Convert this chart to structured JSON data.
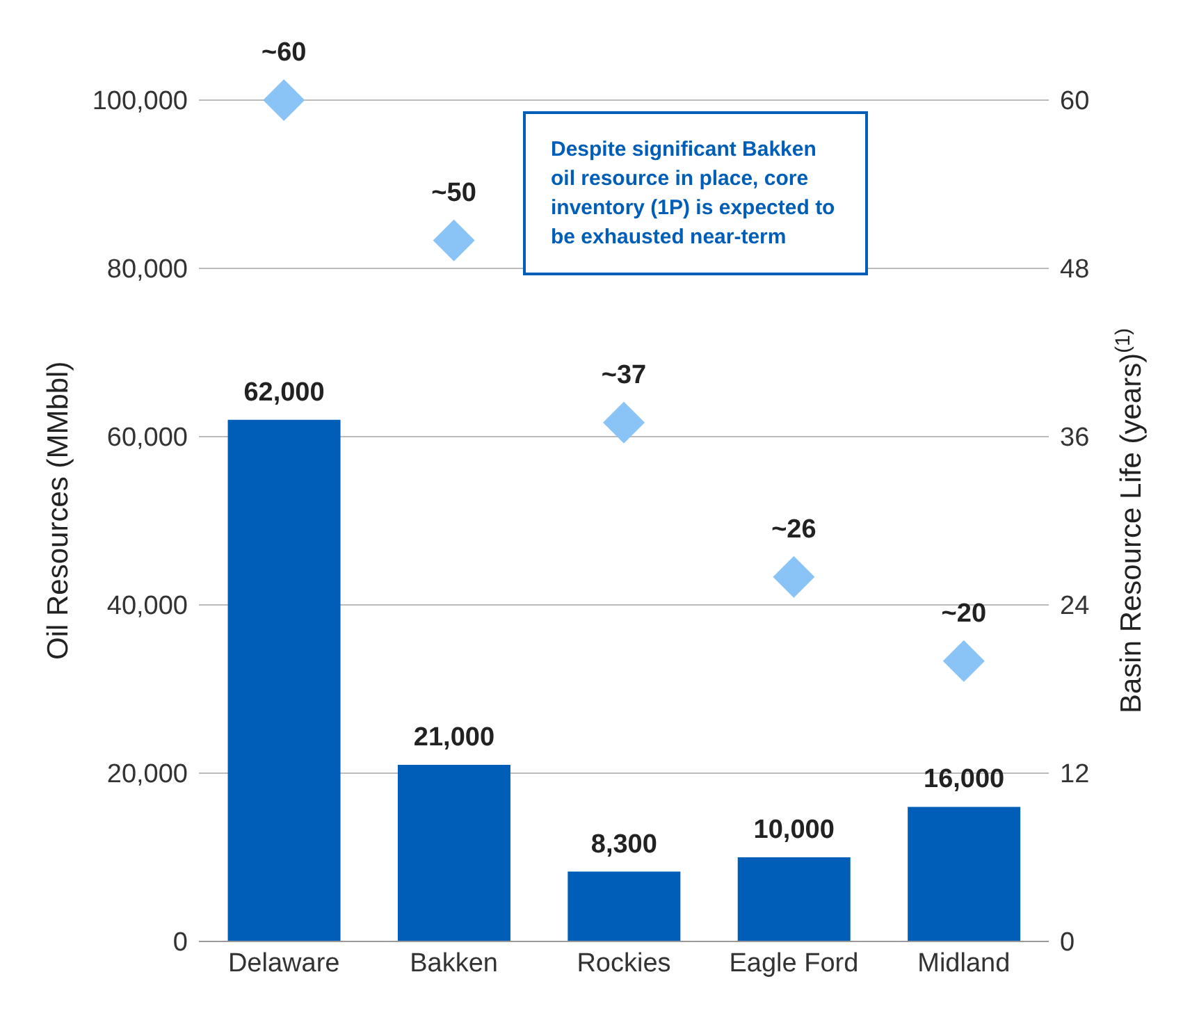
{
  "chart_data": {
    "type": "bar",
    "categories": [
      "Delaware",
      "Bakken",
      "Rockies",
      "Eagle Ford",
      "Midland"
    ],
    "series": [
      {
        "color": "#005eb8",
        "values": [
          62000,
          21000,
          8300,
          10000,
          16000
        ],
        "value_labels": [
          "62,000",
          "21,000",
          "8,300",
          "10,000",
          "16,000"
        ]
      },
      {
        "type": "scatter",
        "axis": "y2",
        "color": "#8ac4f7",
        "marker": "diamond",
        "values": [
          60,
          50,
          37,
          26,
          20
        ],
        "value_labels": [
          "~60",
          "~50",
          "~37",
          "~26",
          "~20"
        ]
      }
    ],
    "ylabel": "Oil Resources (MMbbl)",
    "y2label": "Basin Resource Life (years)$^{(1)}$",
    "ylim": [
      0,
      100000
    ],
    "yticks": [
      0,
      {
        "value": 20000,
        "label": "20,000"
      },
      {
        "value": 40000,
        "label": "40,000"
      },
      {
        "value": 60000,
        "label": "60,000"
      },
      {
        "value": 80000,
        "label": "80,000"
      },
      {
        "value": 100000,
        "label": "100,000"
      }
    ],
    "y2lim": [
      0,
      60
    ],
    "y2ticks": [
      0,
      12,
      24,
      36,
      48,
      60
    ],
    "grid": "y",
    "legend": false,
    "annotations": [
      "Despite significant Bakken oil resource in place, core inventory (1P) is expected to be exhausted near-term"
    ]
  }
}
